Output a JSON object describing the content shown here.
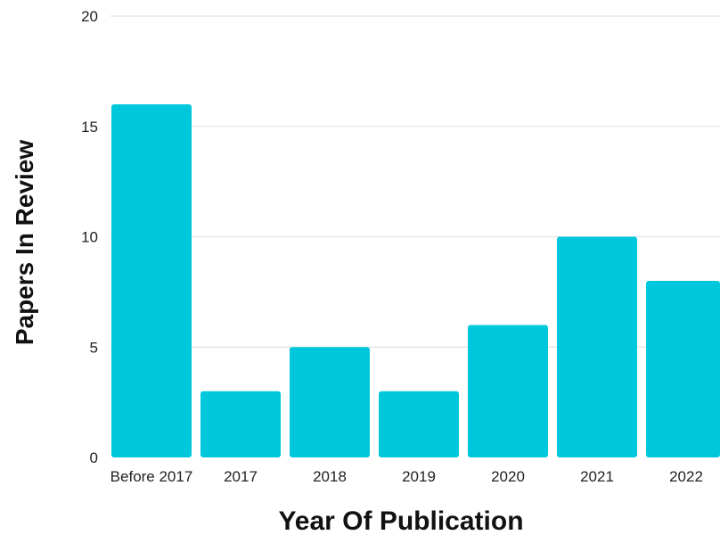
{
  "chart_data": {
    "type": "bar",
    "title": "",
    "xlabel": "Year Of Publication",
    "ylabel": "Papers In Review",
    "categories": [
      "Before 2017",
      "2017",
      "2018",
      "2019",
      "2020",
      "2021",
      "2022"
    ],
    "values": [
      16,
      3,
      5,
      3,
      6,
      10,
      8
    ],
    "ylim": [
      0,
      20
    ],
    "yticks": [
      0,
      5,
      10,
      15,
      20
    ],
    "grid": true,
    "legend": "none",
    "colors": {
      "bar": "#00C8DC",
      "grid": "#DDDDDD"
    }
  }
}
